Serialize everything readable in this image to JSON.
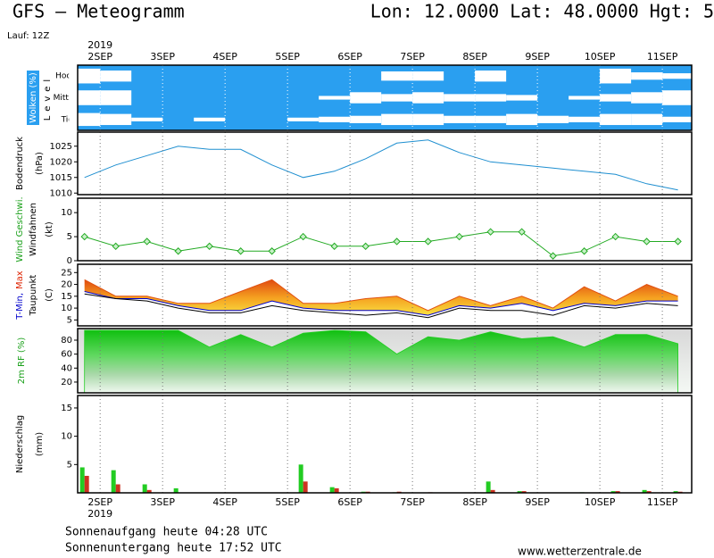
{
  "header": {
    "title": "GFS – Meteogramm",
    "location": "Lon: 12.0000 Lat: 48.0000 Hgt: 5",
    "run": "Lauf: 12Z"
  },
  "footer": {
    "sunrise": "Sonnenaufgang heute 04:28 UTC",
    "sunset": "Sonnenuntergang heute 17:52 UTC",
    "source": "www.wetterzentrale.de"
  },
  "chart_data": [
    {
      "type": "cloud-levels",
      "year": "2019",
      "ylabels": [
        [
          {
            "text": "Wolken (%)",
            "color": "#ffffff"
          }
        ],
        [
          {
            "text": "Level"
          }
        ]
      ],
      "background": "#2a9ff0",
      "cloud_color": "#ffffff",
      "xlim": [
        1.64,
        11.47
      ],
      "xticks": [
        {
          "value": 2,
          "label": "2SEP"
        },
        {
          "value": 3,
          "label": "3SEP"
        },
        {
          "value": 4,
          "label": "4SEP"
        },
        {
          "value": 5,
          "label": "5SEP"
        },
        {
          "value": 6,
          "label": "6SEP"
        },
        {
          "value": 7,
          "label": "7SEP"
        },
        {
          "value": 8,
          "label": "8SEP"
        },
        {
          "value": 9,
          "label": "9SEP"
        },
        {
          "value": 10,
          "label": "10SEP"
        },
        {
          "value": 11,
          "label": "11SEP"
        }
      ],
      "ylim": [
        0,
        100
      ],
      "x": [
        1.75,
        2.25,
        2.75,
        3.25,
        3.75,
        4.25,
        4.75,
        5.25,
        5.75,
        6.25,
        6.75,
        7.25,
        7.75,
        8.25,
        8.75,
        9.25,
        9.75,
        10.25,
        10.75,
        11.25
      ],
      "series": [
        {
          "name": "Hoch",
          "values": [
            80,
            60,
            0,
            0,
            0,
            0,
            0,
            0,
            0,
            0,
            50,
            50,
            0,
            60,
            0,
            0,
            0,
            80,
            40,
            30
          ]
        },
        {
          "name": "Mittel",
          "values": [
            80,
            80,
            0,
            0,
            0,
            0,
            0,
            0,
            20,
            60,
            40,
            60,
            40,
            40,
            30,
            0,
            20,
            40,
            60,
            80
          ]
        },
        {
          "name": "Tief",
          "values": [
            70,
            60,
            20,
            0,
            20,
            0,
            0,
            20,
            30,
            40,
            60,
            60,
            40,
            40,
            60,
            40,
            30,
            60,
            60,
            30
          ]
        }
      ]
    },
    {
      "type": "line",
      "ylabels": [
        [
          {
            "text": "Bodendruck"
          }
        ],
        [
          {
            "text": "(hPa)"
          }
        ]
      ],
      "xlim": [
        1.64,
        11.47
      ],
      "xticks": [
        2,
        3,
        4,
        5,
        6,
        7,
        8,
        9,
        10,
        11
      ],
      "ylim": [
        1009.5,
        1029.5
      ],
      "yticks": [
        1010,
        1015,
        1020,
        1025
      ],
      "x": [
        1.75,
        2.25,
        2.75,
        3.25,
        3.75,
        4.25,
        4.75,
        5.25,
        5.75,
        6.25,
        6.75,
        7.25,
        7.75,
        8.25,
        8.75,
        9.25,
        9.75,
        10.25,
        10.75,
        11.25
      ],
      "series": [
        {
          "color": "#1f8fd0",
          "values": [
            1015,
            1019,
            1022,
            1025,
            1024,
            1024,
            1019,
            1015,
            1017,
            1021,
            1026,
            1027,
            1023,
            1020,
            1019,
            1018,
            1017,
            1016,
            1013,
            1011
          ]
        }
      ]
    },
    {
      "type": "wind",
      "ylabels": [
        [
          {
            "text": "Wind Geschwi.",
            "color": "#1aa01a"
          }
        ],
        [
          {
            "text": "Windfahnen"
          }
        ],
        [
          {
            "text": "(kt)"
          }
        ]
      ],
      "xlim": [
        1.64,
        11.47
      ],
      "xticks": [
        2,
        3,
        4,
        5,
        6,
        7,
        8,
        9,
        10,
        11
      ],
      "ylim": [
        0,
        13
      ],
      "yticks": [
        0,
        5,
        10
      ],
      "x": [
        1.75,
        2.25,
        2.75,
        3.25,
        3.75,
        4.25,
        4.75,
        5.25,
        5.75,
        6.25,
        6.75,
        7.25,
        7.75,
        8.25,
        8.75,
        9.25,
        9.75,
        10.25,
        10.75,
        11.25
      ],
      "series": [
        {
          "color": "#22aa22",
          "values": [
            5,
            3,
            4,
            2,
            3,
            2,
            2,
            5,
            3,
            3,
            4,
            4,
            5,
            6,
            6,
            1,
            2,
            5,
            4,
            4
          ]
        }
      ]
    },
    {
      "type": "temperature",
      "ylabels": [
        [
          {
            "text": "T-Min,",
            "color": "#0000cc"
          },
          {
            "text": "Max",
            "color": "#dd2200"
          }
        ],
        [
          {
            "text": "Taupunkt"
          }
        ],
        [
          {
            "text": "(C)"
          }
        ]
      ],
      "xlim": [
        1.64,
        11.47
      ],
      "xticks": [
        2,
        3,
        4,
        5,
        6,
        7,
        8,
        9,
        10,
        11
      ],
      "ylim": [
        2.5,
        28.5
      ],
      "yticks": [
        5,
        10,
        15,
        20,
        25
      ],
      "x": [
        1.75,
        2.25,
        2.75,
        3.25,
        3.75,
        4.25,
        4.75,
        5.25,
        5.75,
        6.25,
        6.75,
        7.25,
        7.75,
        8.25,
        8.75,
        9.25,
        9.75,
        10.25,
        10.75,
        11.25
      ],
      "series": [
        {
          "color": "#0000cc",
          "values": [
            17,
            14,
            14,
            11,
            9,
            9,
            13,
            10,
            9,
            9,
            9,
            7,
            11,
            10,
            12,
            9,
            12,
            11,
            13,
            13
          ]
        },
        {
          "color": "#e05010",
          "values": [
            22,
            15,
            15,
            12,
            12,
            17,
            22,
            12,
            12,
            14,
            15,
            9,
            15,
            11,
            15,
            10,
            19,
            13,
            20,
            15
          ]
        },
        {
          "color": "#000000",
          "values": [
            16,
            14,
            13,
            10,
            8,
            8,
            11,
            9,
            8,
            7,
            8,
            6,
            10,
            9,
            9,
            7,
            11,
            10,
            12,
            11
          ]
        }
      ]
    },
    {
      "type": "area",
      "ylabels": [
        [
          {
            "text": "2m RF (%)",
            "color": "#1aa01a"
          }
        ]
      ],
      "xlim": [
        1.64,
        11.47
      ],
      "xticks": [
        2,
        3,
        4,
        5,
        6,
        7,
        8,
        9,
        10,
        11
      ],
      "ylim": [
        4.6,
        96.6
      ],
      "yticks": [
        20,
        40,
        60,
        80
      ],
      "x": [
        1.75,
        2.25,
        2.75,
        3.25,
        3.75,
        4.25,
        4.75,
        5.25,
        5.75,
        6.25,
        6.75,
        7.25,
        7.75,
        8.25,
        8.75,
        9.25,
        9.75,
        10.25,
        10.75,
        11.25
      ],
      "series": [
        {
          "color": "#22cc22",
          "values": [
            94,
            94,
            94,
            94,
            70,
            88,
            70,
            90,
            94,
            92,
            60,
            85,
            80,
            92,
            82,
            85,
            70,
            88,
            88,
            75
          ]
        }
      ]
    },
    {
      "type": "bar",
      "year": "2019",
      "ylabels": [
        [
          {
            "text": "Niederschlag"
          }
        ],
        [
          {
            "text": "(mm)"
          }
        ]
      ],
      "xlim": [
        1.64,
        11.47
      ],
      "xticks": [
        {
          "value": 2,
          "label": "2SEP"
        },
        {
          "value": 3,
          "label": "3SEP"
        },
        {
          "value": 4,
          "label": "4SEP"
        },
        {
          "value": 5,
          "label": "5SEP"
        },
        {
          "value": 6,
          "label": "6SEP"
        },
        {
          "value": 7,
          "label": "7SEP"
        },
        {
          "value": 8,
          "label": "8SEP"
        },
        {
          "value": 9,
          "label": "9SEP"
        },
        {
          "value": 10,
          "label": "10SEP"
        },
        {
          "value": 11,
          "label": "11SEP"
        }
      ],
      "ylim": [
        0,
        17.2
      ],
      "yticks": [
        5,
        10,
        15
      ],
      "x": [
        1.75,
        2.25,
        2.75,
        3.25,
        3.75,
        4.25,
        4.75,
        5.25,
        5.75,
        6.25,
        6.75,
        7.25,
        7.75,
        8.25,
        8.75,
        9.25,
        9.75,
        10.25,
        10.75,
        11.25
      ],
      "series": [
        {
          "color": "#22cc22",
          "values": [
            4.5,
            4,
            1.5,
            0.8,
            0,
            0,
            0,
            5,
            1,
            0.2,
            0.1,
            0,
            0,
            2,
            0.3,
            0,
            0.1,
            0.3,
            0.5,
            0.3
          ]
        },
        {
          "color": "#cc3322",
          "values": [
            3,
            1.5,
            0.5,
            0,
            0,
            0,
            0,
            2,
            0.8,
            0.2,
            0.2,
            0.1,
            0,
            0.5,
            0.3,
            0,
            0,
            0.3,
            0.3,
            0.2
          ]
        }
      ]
    }
  ]
}
